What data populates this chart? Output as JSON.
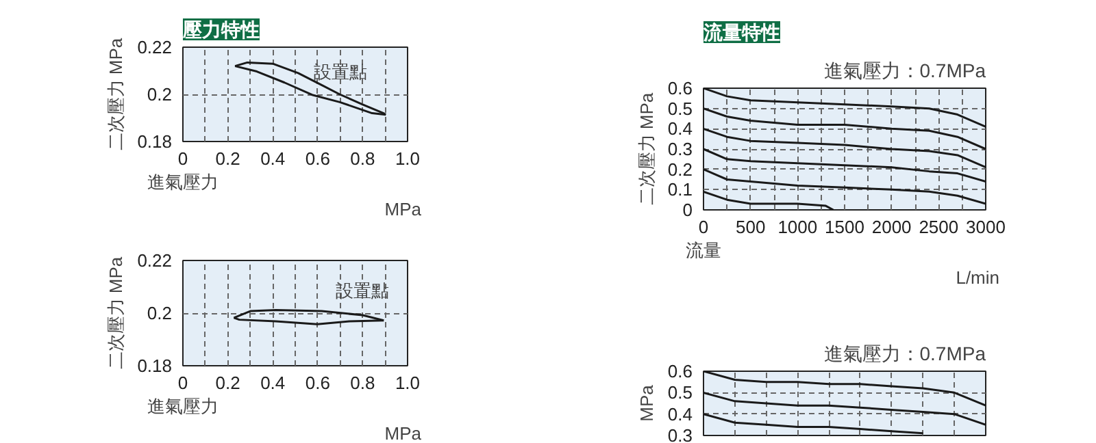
{
  "chart_data": [
    {
      "type": "line",
      "title": "壓力特性",
      "xlabel": "進氣壓力 MPa",
      "ylabel": "二次壓力 MPa",
      "annotations": [
        {
          "text": "設置點",
          "x": 0.7,
          "y": 0.2
        }
      ],
      "grid": true,
      "xlim": [
        0,
        1
      ],
      "xticks": [
        0,
        0.2,
        0.4,
        0.6,
        0.8,
        {
          "value": 1,
          "label": "1.0"
        }
      ],
      "ylim": [
        0.18,
        0.22
      ],
      "yticks": [
        0.18,
        0.2,
        0.22
      ],
      "series": [
        {
          "color": "#1a1a1a",
          "x": [
            0.232,
            0.287,
            0.4,
            0.513,
            0.616,
            0.698,
            0.8,
            0.893,
            0.903
          ],
          "values": [
            0.212,
            0.2135,
            0.213,
            0.209,
            0.204,
            0.2,
            0.1957,
            0.192,
            0.1914
          ]
        },
        {
          "color": "#1a1a1a",
          "x": [
            0.232,
            0.329,
            0.452,
            0.575,
            0.698,
            0.842,
            0.903
          ],
          "values": [
            0.212,
            0.2097,
            0.205,
            0.1998,
            0.1967,
            0.192,
            0.1914
          ]
        }
      ]
    },
    {
      "type": "line",
      "xlabel": "進氣壓力 MPa",
      "ylabel": "二次壓力 MPa",
      "annotations": [
        {
          "text": "設置點",
          "x": 0.8,
          "y": 0.2
        }
      ],
      "grid": true,
      "xlim": [
        0,
        1
      ],
      "xticks": [
        0,
        0.2,
        0.4,
        0.6,
        0.8,
        {
          "value": 1,
          "label": "1.0"
        }
      ],
      "ylim": [
        0.18,
        0.22
      ],
      "yticks": [
        0.18,
        0.2,
        0.22
      ],
      "series": [
        {
          "color": "#1a1a1a",
          "x": [
            0.227,
            0.302,
            0.414,
            0.618,
            0.8,
            0.894
          ],
          "values": [
            0.1982,
            0.2008,
            0.2012,
            0.2008,
            0.1992,
            0.1972
          ]
        },
        {
          "color": "#1a1a1a",
          "x": [
            0.227,
            0.251,
            0.414,
            0.598,
            0.741,
            0.894
          ],
          "values": [
            0.1982,
            0.1975,
            0.1969,
            0.1958,
            0.1969,
            0.1972
          ]
        }
      ]
    },
    {
      "type": "line",
      "title": "流量特性",
      "xlabel": "流量 L/min",
      "ylabel": "二次壓力 MPa",
      "annotations": [
        "進氣壓力：0.7MPa"
      ],
      "grid": true,
      "xlim": [
        0,
        3000
      ],
      "xticks": [
        0,
        500,
        1000,
        1500,
        2000,
        2500,
        3000
      ],
      "ylim": [
        0,
        0.6
      ],
      "yticks": [
        0,
        0.1,
        0.2,
        0.3,
        0.4,
        0.5,
        0.6
      ],
      "series": [
        {
          "color": "#1a1a1a",
          "x": [
            0,
            250,
            500,
            1000,
            1500,
            2000,
            2400,
            2700,
            3000
          ],
          "values": [
            0.6,
            0.56,
            0.54,
            0.53,
            0.52,
            0.51,
            0.5,
            0.47,
            0.41
          ]
        },
        {
          "color": "#1a1a1a",
          "x": [
            0,
            250,
            500,
            1000,
            1500,
            2000,
            2400,
            2700,
            3000
          ],
          "values": [
            0.5,
            0.46,
            0.44,
            0.42,
            0.42,
            0.4,
            0.39,
            0.36,
            0.3
          ]
        },
        {
          "color": "#1a1a1a",
          "x": [
            0,
            250,
            500,
            1000,
            1500,
            2000,
            2400,
            2700,
            3000
          ],
          "values": [
            0.4,
            0.36,
            0.34,
            0.33,
            0.32,
            0.3,
            0.29,
            0.27,
            0.21
          ]
        },
        {
          "color": "#1a1a1a",
          "x": [
            0,
            250,
            500,
            1000,
            1500,
            2000,
            2400,
            2700,
            3000
          ],
          "values": [
            0.3,
            0.25,
            0.24,
            0.23,
            0.22,
            0.21,
            0.19,
            0.18,
            0.14
          ]
        },
        {
          "color": "#1a1a1a",
          "x": [
            0,
            250,
            500,
            1000,
            1500,
            2000,
            2400,
            2700,
            3000
          ],
          "values": [
            0.2,
            0.15,
            0.14,
            0.12,
            0.11,
            0.1,
            0.09,
            0.07,
            0.03
          ]
        },
        {
          "color": "#1a1a1a",
          "x": [
            0,
            250,
            500,
            1000,
            1300,
            1380
          ],
          "values": [
            0.09,
            0.05,
            0.03,
            0.03,
            0.02,
            0
          ]
        }
      ]
    },
    {
      "type": "line",
      "ylabel": "MPa",
      "annotations": [
        "進氣壓力：0.7MPa"
      ],
      "grid": true,
      "tick_labels": "y",
      "categories": [
        null,
        null,
        null,
        null,
        null,
        null,
        null,
        null,
        null,
        null
      ],
      "ylim": [
        0.3,
        0.6
      ],
      "yticks": [
        0.3,
        0.4,
        0.5,
        0.6
      ],
      "series": [
        {
          "color": "#1a1a1a",
          "values": [
            0.6,
            0.56,
            0.55,
            0.55,
            0.54,
            0.54,
            0.53,
            0.52,
            0.5,
            0.44
          ]
        },
        {
          "color": "#1a1a1a",
          "values": [
            0.5,
            0.46,
            0.45,
            0.44,
            0.44,
            0.43,
            0.42,
            0.41,
            0.4,
            0.35
          ]
        },
        {
          "color": "#1a1a1a",
          "values": [
            0.4,
            0.36,
            0.35,
            0.34,
            0.34,
            0.33,
            0.32,
            0.31,
            null,
            null
          ]
        }
      ]
    }
  ]
}
